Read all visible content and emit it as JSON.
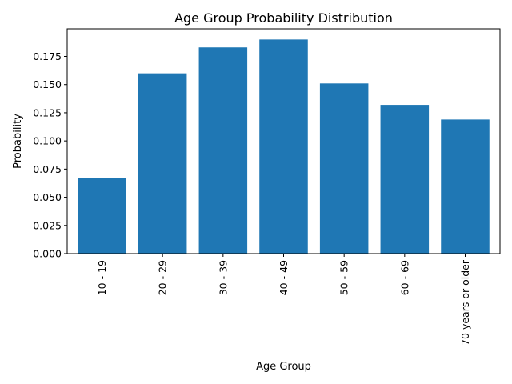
{
  "chart_data": {
    "type": "bar",
    "title": "Age Group Probability Distribution",
    "xlabel": "Age Group",
    "ylabel": "Probability",
    "categories": [
      "10 - 19",
      "20 - 29",
      "30 - 39",
      "40 - 49",
      "50 - 59",
      "60 - 69",
      "70 years or older"
    ],
    "values": [
      0.067,
      0.16,
      0.183,
      0.19,
      0.151,
      0.132,
      0.119
    ],
    "ylim": [
      0,
      0.1995
    ],
    "yticks": [
      "0.000",
      "0.025",
      "0.050",
      "0.075",
      "0.100",
      "0.125",
      "0.150",
      "0.175"
    ],
    "bar_color": "#1f77b4",
    "grid": false,
    "legend": "none"
  }
}
